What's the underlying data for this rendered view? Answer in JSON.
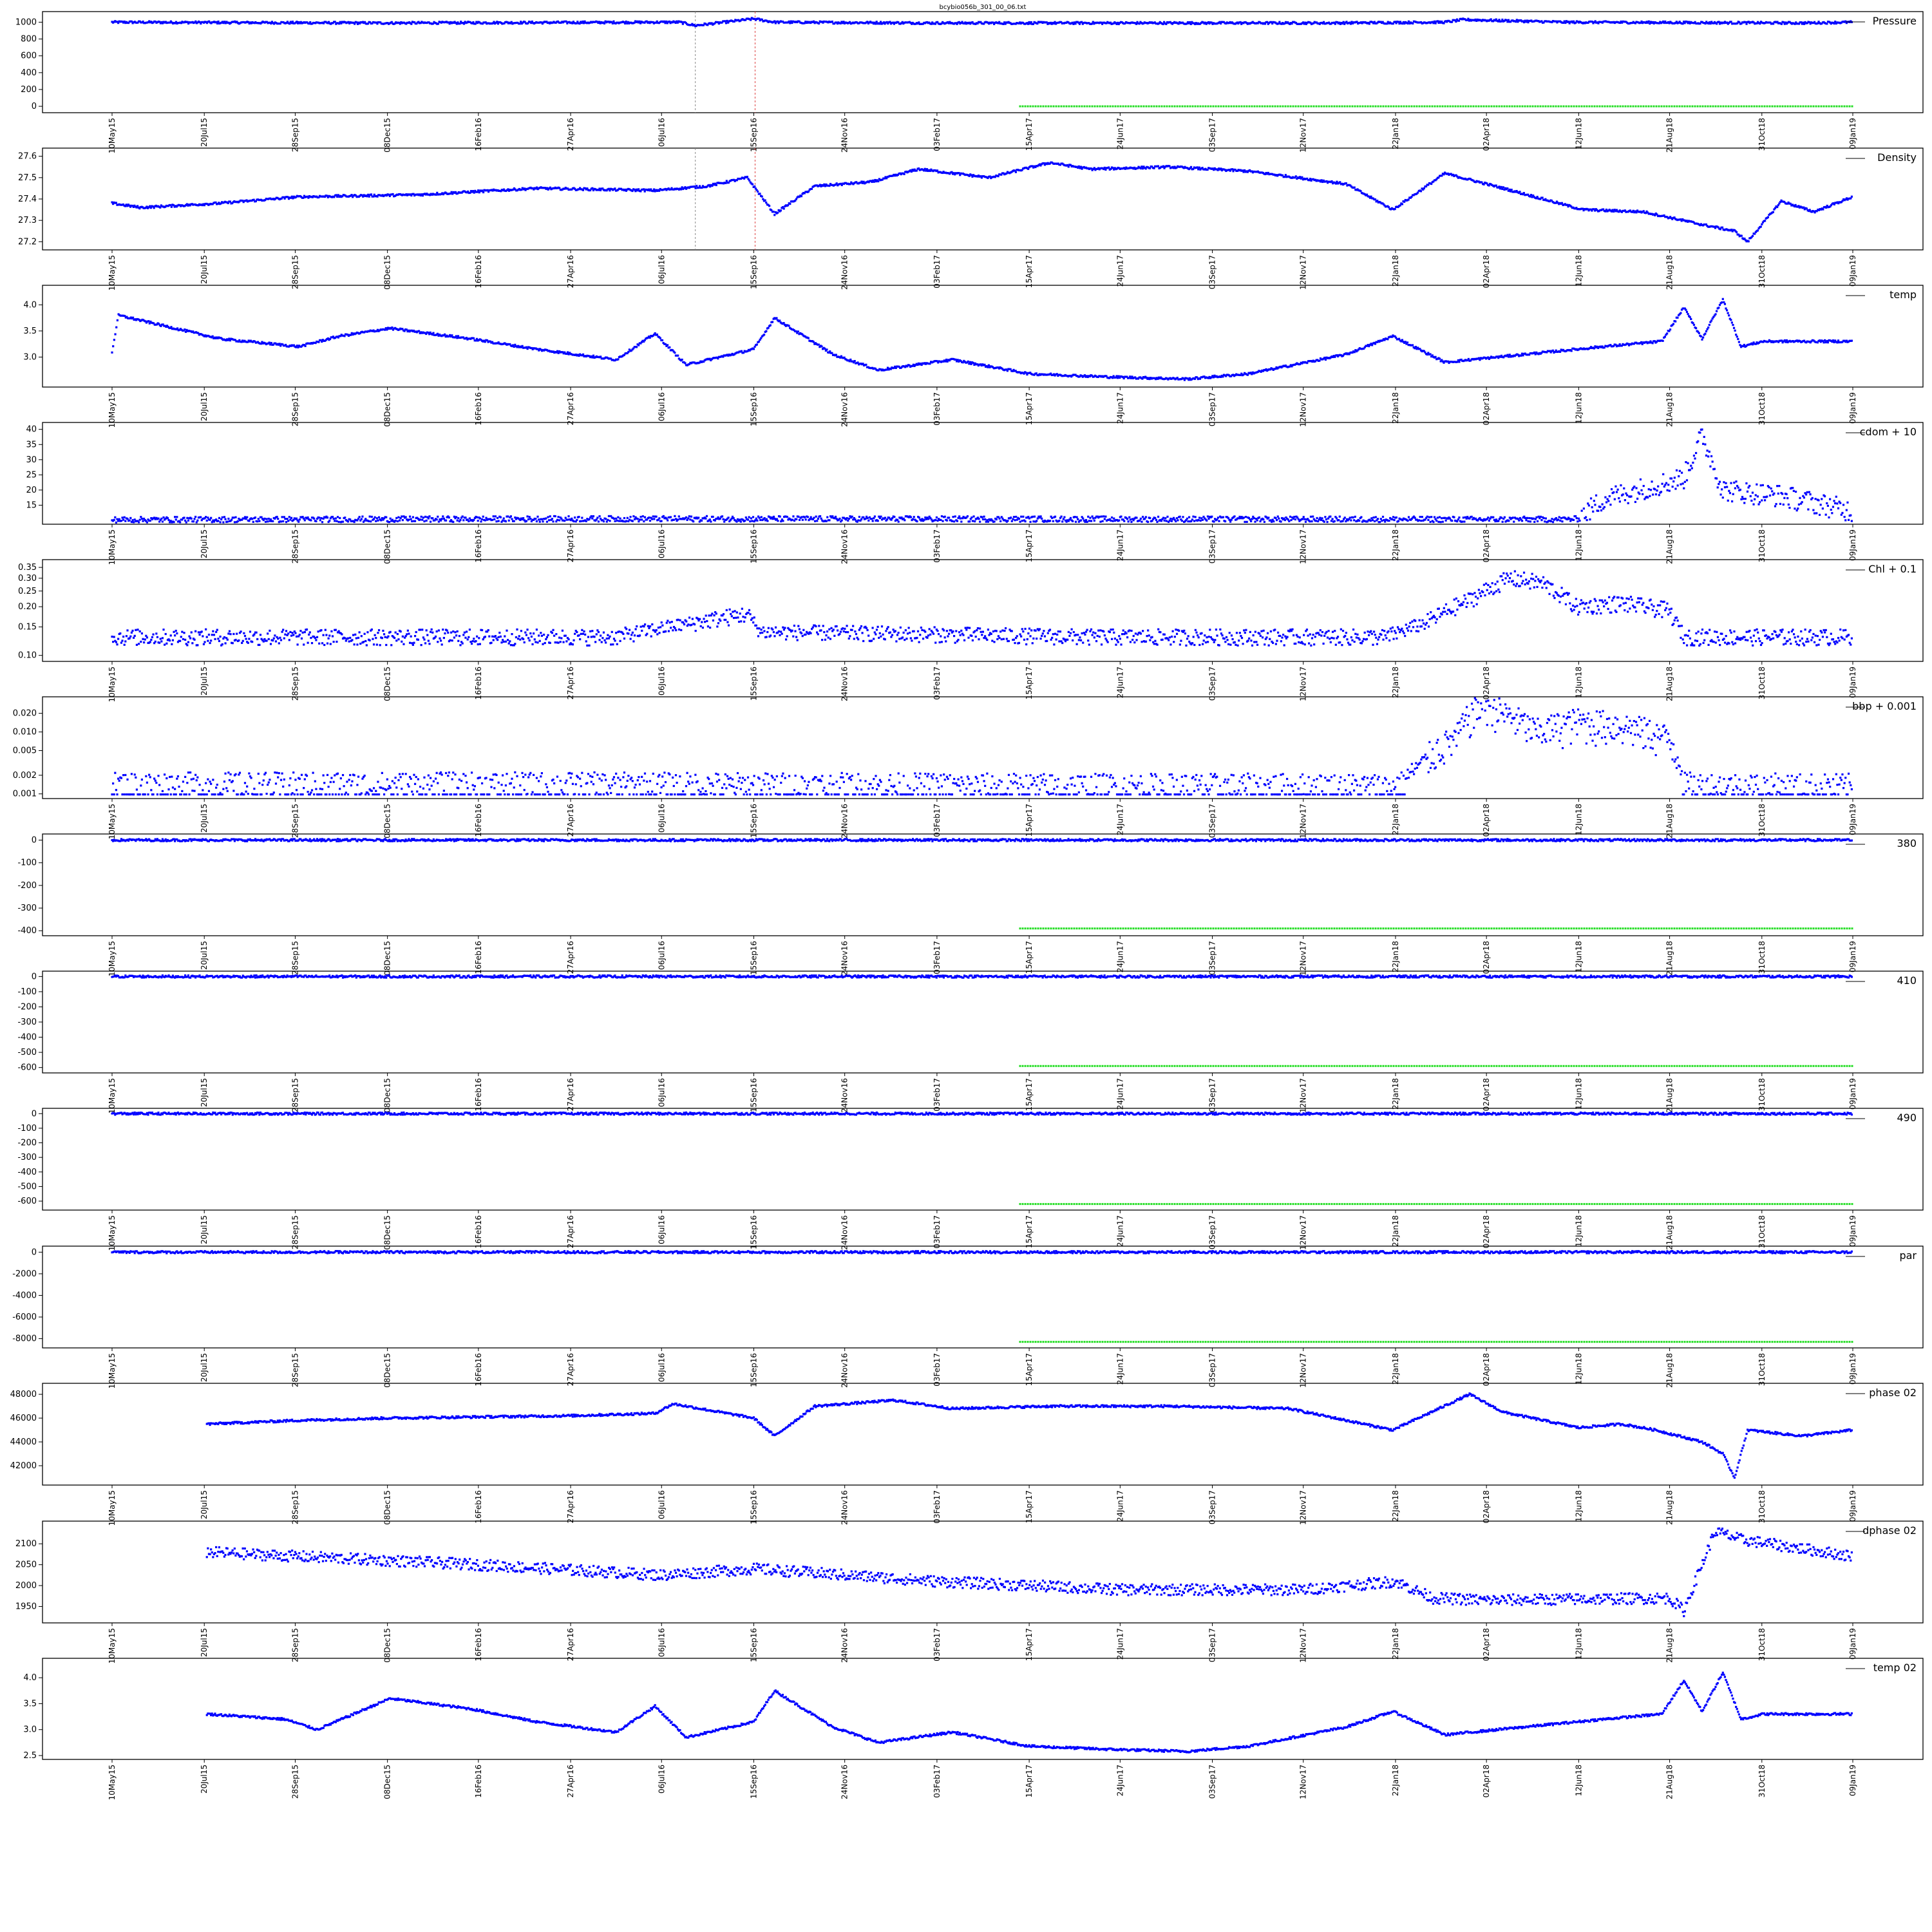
{
  "title": "bcybio056b_301_00_06.txt",
  "colors": {
    "data": "#0000ff",
    "flag": "#22dd22",
    "frame": "#000000",
    "marker_gray": "#888888",
    "marker_red": "#dd4444",
    "background": "#ffffff"
  },
  "date_ticks": [
    "10May15",
    "20Jul15",
    "28Sep15",
    "08Dec15",
    "16Feb16",
    "27Apr16",
    "06Jul16",
    "15Sep16",
    "24Nov16",
    "03Feb17",
    "15Apr17",
    "24Jun17",
    "03Sep17",
    "12Nov17",
    "22Jan18",
    "02Apr18",
    "12Jun18",
    "21Aug18",
    "31Oct18",
    "09Jan19"
  ],
  "chart_data": [
    {
      "type": "scatter",
      "legend": "Pressure",
      "legend_position": "top-right",
      "x_axis": "date",
      "x_range": [
        "2015-05-10",
        "2019-01-09"
      ],
      "ylim": [
        -30,
        1080
      ],
      "y_ticks": [
        "1000",
        "800",
        "600",
        "400",
        "200",
        "0"
      ],
      "series": [
        {
          "role": "data",
          "x": [
            "2015-05-10",
            "2015-12-01",
            "2016-07-20",
            "2016-08-01",
            "2016-09-15",
            "2016-10-01",
            "2017-02-01",
            "2017-12-01",
            "2018-03-01",
            "2018-03-15",
            "2018-06-01",
            "2018-12-01",
            "2019-01-09"
          ],
          "y": [
            1000,
            990,
            1000,
            960,
            1040,
            1000,
            990,
            990,
            1000,
            1030,
            1000,
            990,
            1000
          ]
        },
        {
          "role": "flag",
          "x": [
            "2017-04-08",
            "2019-01-09"
          ],
          "y": [
            0,
            0
          ]
        }
      ],
      "markers": [
        {
          "date": "2016-08-01",
          "color": "gray"
        },
        {
          "date": "2016-09-16",
          "color": "red"
        }
      ]
    },
    {
      "type": "scatter",
      "legend": "Density",
      "legend_position": "top-right",
      "x_axis": "date",
      "x_range": [
        "2015-05-10",
        "2019-01-09"
      ],
      "ylim": [
        27.18,
        27.62
      ],
      "y_ticks": [
        "27.6",
        "27.5",
        "27.4",
        "27.3",
        "27.2"
      ],
      "series": [
        {
          "role": "data",
          "x": [
            "2015-05-10",
            "2015-06-01",
            "2015-08-01",
            "2015-10-01",
            "2016-01-01",
            "2016-04-01",
            "2016-07-01",
            "2016-08-10",
            "2016-09-10",
            "2016-10-01",
            "2016-11-01",
            "2016-12-15",
            "2017-01-20",
            "2017-03-15",
            "2017-05-01",
            "2017-06-01",
            "2017-08-01",
            "2017-10-01",
            "2017-12-15",
            "2018-01-20",
            "2018-03-01",
            "2018-04-15",
            "2018-06-15",
            "2018-08-01",
            "2018-09-15",
            "2018-10-10",
            "2018-10-20",
            "2018-11-15",
            "2018-12-10",
            "2019-01-09"
          ],
          "y": [
            27.38,
            27.36,
            27.38,
            27.41,
            27.42,
            27.45,
            27.44,
            27.46,
            27.5,
            27.33,
            27.46,
            27.48,
            27.54,
            27.5,
            27.57,
            27.54,
            27.55,
            27.53,
            27.47,
            27.35,
            27.52,
            27.45,
            27.35,
            27.34,
            27.28,
            27.25,
            27.2,
            27.39,
            27.34,
            27.41
          ]
        }
      ],
      "markers": [
        {
          "date": "2016-08-01",
          "color": "gray"
        },
        {
          "date": "2016-09-16",
          "color": "red"
        }
      ]
    },
    {
      "type": "scatter",
      "legend": "temp",
      "legend_position": "top-right",
      "x_axis": "date",
      "x_range": [
        "2015-05-10",
        "2019-01-09"
      ],
      "ylim": [
        2.5,
        4.3
      ],
      "y_ticks": [
        "4.0",
        "3.5",
        "3.0"
      ],
      "series": [
        {
          "role": "data",
          "x": [
            "2015-05-10",
            "2015-05-15",
            "2015-08-01",
            "2015-10-01",
            "2015-11-01",
            "2015-12-10",
            "2016-02-10",
            "2016-04-01",
            "2016-06-01",
            "2016-07-01",
            "2016-07-25",
            "2016-09-15",
            "2016-10-01",
            "2016-11-15",
            "2016-12-20",
            "2017-02-15",
            "2017-04-15",
            "2017-06-15",
            "2017-08-15",
            "2017-10-01",
            "2017-12-15",
            "2018-01-20",
            "2018-03-01",
            "2018-05-01",
            "2018-07-01",
            "2018-08-15",
            "2018-09-01",
            "2018-09-15",
            "2018-10-01",
            "2018-10-15",
            "2018-11-01",
            "2018-12-01",
            "2019-01-09"
          ],
          "y": [
            3.1,
            3.8,
            3.35,
            3.2,
            3.4,
            3.55,
            3.35,
            3.15,
            2.95,
            3.45,
            2.85,
            3.15,
            3.75,
            3.05,
            2.75,
            2.95,
            2.68,
            2.62,
            2.58,
            2.68,
            3.05,
            3.4,
            2.9,
            3.05,
            3.2,
            3.3,
            3.95,
            3.35,
            4.1,
            3.2,
            3.3,
            3.3,
            3.3
          ]
        }
      ]
    },
    {
      "type": "scatter",
      "legend": "cdom + 10",
      "legend_position": "top-right",
      "x_axis": "date",
      "x_range": [
        "2015-05-10",
        "2019-01-09"
      ],
      "ylim": [
        10,
        41
      ],
      "y_ticks": [
        "40",
        "35",
        "30",
        "25",
        "20",
        "15"
      ],
      "series": [
        {
          "role": "data",
          "x": [
            "2015-05-10",
            "2016-06-01",
            "2017-06-01",
            "2018-06-01",
            "2018-06-12",
            "2018-07-01",
            "2018-09-01",
            "2018-09-15",
            "2018-10-01",
            "2018-11-15",
            "2019-01-09"
          ],
          "y": [
            10.2,
            10.5,
            10.4,
            10.3,
            10.5,
            17,
            24,
            38,
            20,
            18,
            13
          ]
        }
      ]
    },
    {
      "type": "scatter",
      "legend": "Chl + 0.1",
      "legend_position": "top-right",
      "x_axis": "date",
      "x_range": [
        "2015-05-10",
        "2019-01-09"
      ],
      "y_scale": "log",
      "ylim": [
        0.097,
        0.37
      ],
      "y_ticks": [
        "0.35",
        "0.30",
        "0.25",
        "0.20",
        "0.15",
        "0.10"
      ],
      "series": [
        {
          "role": "data",
          "x": [
            "2015-05-10",
            "2016-06-01",
            "2016-09-10",
            "2016-09-20",
            "2017-06-01",
            "2018-01-15",
            "2018-02-15",
            "2018-03-20",
            "2018-04-20",
            "2018-05-15",
            "2018-06-10",
            "2018-07-15",
            "2018-08-20",
            "2018-09-01",
            "2018-12-01",
            "2019-01-09"
          ],
          "y": [
            0.13,
            0.13,
            0.18,
            0.14,
            0.13,
            0.13,
            0.16,
            0.22,
            0.3,
            0.28,
            0.2,
            0.21,
            0.19,
            0.13,
            0.13,
            0.13
          ]
        }
      ]
    },
    {
      "type": "scatter",
      "legend": "bbp + 0.001",
      "legend_position": "top-right",
      "x_axis": "date",
      "x_range": [
        "2015-05-10",
        "2019-01-09"
      ],
      "y_scale": "log",
      "ylim": [
        0.00097,
        0.032
      ],
      "y_ticks": [
        "0.020",
        "0.010",
        "0.005",
        "0.002",
        "0.001"
      ],
      "series": [
        {
          "role": "data",
          "x": [
            "2015-05-10",
            "2016-06-01",
            "2017-06-01",
            "2018-01-25",
            "2018-02-10",
            "2018-03-10",
            "2018-04-01",
            "2018-04-15",
            "2018-05-10",
            "2018-06-10",
            "2018-07-15",
            "2018-08-20",
            "2018-09-01",
            "2018-12-01",
            "2019-01-09"
          ],
          "y": [
            0.0013,
            0.0013,
            0.0012,
            0.0012,
            0.003,
            0.008,
            0.03,
            0.02,
            0.01,
            0.015,
            0.013,
            0.008,
            0.0013,
            0.0012,
            0.0012
          ]
        }
      ]
    },
    {
      "type": "scatter",
      "legend": "380",
      "legend_position": "top-right",
      "x_axis": "date",
      "x_range": [
        "2015-05-10",
        "2019-01-09"
      ],
      "ylim": [
        -405,
        10
      ],
      "y_ticks": [
        "0",
        "-100",
        "-200",
        "-300",
        "-400"
      ],
      "series": [
        {
          "role": "data",
          "x": [
            "2015-05-10",
            "2019-01-09"
          ],
          "y": [
            0,
            0
          ]
        },
        {
          "role": "flag",
          "x": [
            "2017-04-08",
            "2019-01-09"
          ],
          "y": [
            -390,
            -390
          ]
        }
      ]
    },
    {
      "type": "scatter",
      "legend": "410",
      "legend_position": "top-right",
      "x_axis": "date",
      "x_range": [
        "2015-05-10",
        "2019-01-09"
      ],
      "ylim": [
        -610,
        10
      ],
      "y_ticks": [
        "0",
        "-100",
        "-200",
        "-300",
        "-400",
        "-500",
        "-600"
      ],
      "series": [
        {
          "role": "data",
          "x": [
            "2015-05-10",
            "2019-01-09"
          ],
          "y": [
            0,
            0
          ]
        },
        {
          "role": "flag",
          "x": [
            "2017-04-08",
            "2019-01-09"
          ],
          "y": [
            -590,
            -590
          ]
        }
      ]
    },
    {
      "type": "scatter",
      "legend": "490",
      "legend_position": "top-right",
      "x_axis": "date",
      "x_range": [
        "2015-05-10",
        "2019-01-09"
      ],
      "ylim": [
        -635,
        10
      ],
      "y_ticks": [
        "0",
        "-100",
        "-200",
        "-300",
        "-400",
        "-500",
        "-600"
      ],
      "series": [
        {
          "role": "data",
          "x": [
            "2015-05-10",
            "2019-01-09"
          ],
          "y": [
            0,
            0
          ]
        },
        {
          "role": "flag",
          "x": [
            "2017-04-08",
            "2019-01-09"
          ],
          "y": [
            -620,
            -620
          ]
        }
      ]
    },
    {
      "type": "scatter",
      "legend": "par",
      "legend_position": "top-right",
      "x_axis": "date",
      "x_range": [
        "2015-05-10",
        "2019-01-09"
      ],
      "ylim": [
        -8500,
        200
      ],
      "y_ticks": [
        "0",
        "-2000",
        "-4000",
        "-6000",
        "-8000"
      ],
      "series": [
        {
          "role": "data",
          "x": [
            "2015-05-10",
            "2019-01-09"
          ],
          "y": [
            0,
            0
          ]
        },
        {
          "role": "flag",
          "x": [
            "2017-04-08",
            "2019-01-09"
          ],
          "y": [
            -8300,
            -8300
          ]
        }
      ]
    },
    {
      "type": "scatter",
      "legend": "phase 02",
      "legend_position": "top-right",
      "x_axis": "date",
      "x_range": [
        "2015-05-10",
        "2019-01-09"
      ],
      "ylim": [
        40700,
        48600
      ],
      "y_ticks": [
        "48000",
        "46000",
        "44000",
        "42000"
      ],
      "series": [
        {
          "role": "data",
          "x": [
            "2015-07-22",
            "2015-09-28",
            "2015-12-08",
            "2016-04-27",
            "2016-07-01",
            "2016-07-15",
            "2016-09-15",
            "2016-10-01",
            "2016-11-01",
            "2017-01-01",
            "2017-02-15",
            "2017-05-01",
            "2017-08-01",
            "2017-11-01",
            "2018-01-20",
            "2018-03-20",
            "2018-04-15",
            "2018-06-12",
            "2018-07-15",
            "2018-08-10",
            "2018-09-15",
            "2018-10-01",
            "2018-10-10",
            "2018-10-20",
            "2018-12-01",
            "2019-01-09"
          ],
          "y": [
            45500,
            45800,
            46000,
            46200,
            46400,
            47200,
            46000,
            44500,
            47000,
            47500,
            46800,
            47000,
            47000,
            46800,
            45000,
            48000,
            46500,
            45200,
            45500,
            45000,
            44000,
            43000,
            41000,
            45000,
            44500,
            45000
          ]
        }
      ]
    },
    {
      "type": "scatter",
      "legend": "dphase 02",
      "legend_position": "top-right",
      "x_axis": "date",
      "x_range": [
        "2015-05-10",
        "2019-01-09"
      ],
      "ylim": [
        1920,
        2145
      ],
      "y_ticks": [
        "2100",
        "2050",
        "2000",
        "1950"
      ],
      "series": [
        {
          "role": "data",
          "x": [
            "2015-07-22",
            "2015-09-28",
            "2016-02-15",
            "2016-07-06",
            "2016-09-15",
            "2017-02-03",
            "2017-06-24",
            "2017-11-12",
            "2018-01-22",
            "2018-02-20",
            "2018-04-02",
            "2018-08-21",
            "2018-09-01",
            "2018-09-25",
            "2018-10-15",
            "2019-01-09"
          ],
          "y": [
            2080,
            2070,
            2050,
            2025,
            2040,
            2010,
            1990,
            1990,
            2010,
            1970,
            1965,
            1970,
            1940,
            2130,
            2110,
            2070
          ]
        }
      ]
    },
    {
      "type": "scatter",
      "legend": "temp 02",
      "legend_position": "top-right",
      "x_axis": "date",
      "x_range": [
        "2015-05-10",
        "2019-01-09"
      ],
      "ylim": [
        2.5,
        4.3
      ],
      "y_ticks": [
        "4.0",
        "3.5",
        "3.0",
        "2.5"
      ],
      "series": [
        {
          "role": "data",
          "x": [
            "2015-07-22",
            "2015-09-20",
            "2015-10-15",
            "2015-12-10",
            "2016-02-10",
            "2016-04-01",
            "2016-06-01",
            "2016-07-01",
            "2016-07-25",
            "2016-09-15",
            "2016-10-01",
            "2016-11-15",
            "2016-12-20",
            "2017-02-15",
            "2017-04-15",
            "2017-06-15",
            "2017-08-15",
            "2017-10-01",
            "2017-12-15",
            "2018-01-20",
            "2018-03-01",
            "2018-05-01",
            "2018-07-01",
            "2018-08-15",
            "2018-09-01",
            "2018-09-15",
            "2018-10-01",
            "2018-10-15",
            "2018-11-01",
            "2018-12-01",
            "2019-01-09"
          ],
          "y": [
            3.3,
            3.2,
            3.0,
            3.6,
            3.4,
            3.15,
            2.95,
            3.45,
            2.85,
            3.15,
            3.75,
            3.05,
            2.75,
            2.95,
            2.68,
            2.62,
            2.58,
            2.68,
            3.05,
            3.35,
            2.9,
            3.05,
            3.2,
            3.3,
            3.95,
            3.35,
            4.1,
            3.2,
            3.3,
            3.3,
            3.3
          ]
        }
      ]
    }
  ]
}
